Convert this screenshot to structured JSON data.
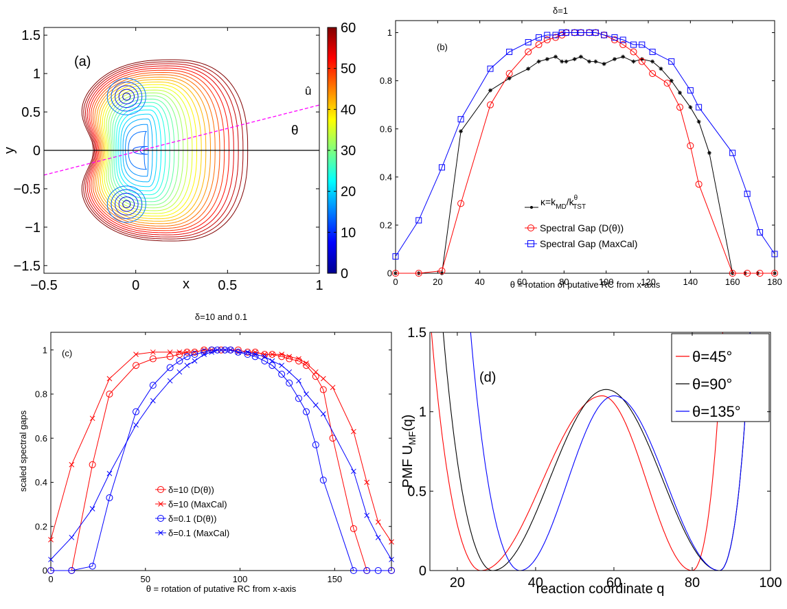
{
  "chart_data": [
    {
      "id": "a",
      "type": "contour",
      "panel_label": "(a)",
      "xlabel": "x",
      "ylabel": "y",
      "xlim": [
        -0.5,
        1
      ],
      "ylim": [
        -1.6,
        1.6
      ],
      "xticks": [
        "−0.5",
        "0",
        "0.5",
        "1"
      ],
      "yticks": [
        "−1.5",
        "−1",
        "−0.5",
        "0",
        "0.5",
        "1",
        "1.5"
      ],
      "colorbar": {
        "range": [
          0,
          60
        ],
        "ticks": [
          "0",
          "10",
          "20",
          "30",
          "40",
          "50",
          "60"
        ]
      },
      "annotations": {
        "u_hat": "û",
        "theta": "θ"
      },
      "wells": [
        {
          "x": -0.05,
          "y": 0.7
        },
        {
          "x": -0.05,
          "y": -0.7
        }
      ],
      "levels": 25
    },
    {
      "id": "b",
      "type": "line",
      "title": "δ=1",
      "panel_label": "(b)",
      "xlabel": "θ = rotation of putative RC from x-axis",
      "xlim": [
        0,
        180
      ],
      "ylim": [
        0,
        1.05
      ],
      "xticks": [
        "0",
        "20",
        "40",
        "60",
        "80",
        "100",
        "120",
        "140",
        "160",
        "180"
      ],
      "yticks": [
        "0",
        "0.2",
        "0.4",
        "0.6",
        "0.8",
        "1"
      ],
      "series": [
        {
          "name": "κ=kMD/kθTST",
          "color": "#000000",
          "marker": "dot",
          "x": [
            0,
            11,
            22,
            31,
            45,
            54,
            63,
            68,
            72,
            76,
            79,
            81,
            85,
            88,
            92,
            95,
            99,
            104,
            108,
            113,
            117,
            122,
            126,
            131,
            135,
            140,
            144,
            149,
            160,
            166,
            172,
            180
          ],
          "y": [
            0,
            0,
            0,
            0.59,
            0.76,
            0.81,
            0.85,
            0.88,
            0.89,
            0.9,
            0.88,
            0.88,
            0.89,
            0.9,
            0.88,
            0.88,
            0.87,
            0.89,
            0.9,
            0.88,
            0.89,
            0.88,
            0.85,
            0.8,
            0.75,
            0.69,
            0.63,
            0.5,
            0,
            0,
            0,
            0
          ]
        },
        {
          "name": "Spectral Gap (D(θ))",
          "color": "#ff0000",
          "marker": "circle",
          "x": [
            0,
            11,
            22,
            31,
            45,
            54,
            63,
            68,
            72,
            76,
            79,
            81,
            85,
            88,
            92,
            95,
            99,
            104,
            108,
            113,
            117,
            122,
            129,
            135,
            140,
            144,
            160,
            167,
            173,
            180
          ],
          "y": [
            0,
            0,
            0.01,
            0.29,
            0.7,
            0.83,
            0.92,
            0.95,
            0.97,
            0.98,
            0.99,
            1.0,
            1.0,
            1.0,
            1.0,
            1.0,
            0.99,
            0.97,
            0.95,
            0.92,
            0.88,
            0.83,
            0.79,
            0.69,
            0.53,
            0.37,
            0,
            0,
            0,
            0
          ]
        },
        {
          "name": "Spectral Gap (MaxCal)",
          "color": "#0000ff",
          "marker": "square",
          "x": [
            0,
            11,
            22,
            31,
            45,
            54,
            63,
            68,
            72,
            76,
            79,
            81,
            85,
            88,
            92,
            95,
            99,
            104,
            108,
            113,
            117,
            122,
            131,
            140,
            144,
            160,
            167,
            173,
            180
          ],
          "y": [
            0.07,
            0.22,
            0.44,
            0.64,
            0.85,
            0.92,
            0.96,
            0.98,
            0.99,
            0.99,
            1.0,
            1.0,
            1.0,
            1.0,
            1.0,
            1.0,
            0.99,
            0.98,
            0.97,
            0.95,
            0.95,
            0.92,
            0.88,
            0.76,
            0.69,
            0.5,
            0.33,
            0.17,
            0.08
          ]
        }
      ],
      "legend_position": "lower-center"
    },
    {
      "id": "c",
      "type": "line",
      "title": "δ=10 and 0.1",
      "panel_label": "(c)",
      "xlabel": "θ = rotation of putative RC from x-axis",
      "ylabel": "scaled spectral gaps",
      "xlim": [
        0,
        180
      ],
      "ylim": [
        0,
        1.08
      ],
      "xticks": [
        "0",
        "50",
        "100",
        "150"
      ],
      "yticks": [
        "0",
        "0.2",
        "0.4",
        "0.6",
        "0.8",
        "1"
      ],
      "series": [
        {
          "name": "δ=10 (D(θ))",
          "color": "#ff0000",
          "marker": "circle",
          "x": [
            0,
            11,
            22,
            31,
            45,
            54,
            63,
            68,
            72,
            76,
            81,
            85,
            90,
            95,
            99,
            104,
            108,
            113,
            117,
            122,
            126,
            131,
            135,
            140,
            144,
            149,
            160,
            167,
            180
          ],
          "y": [
            0,
            0,
            0.48,
            0.8,
            0.93,
            0.96,
            0.97,
            0.98,
            0.99,
            0.99,
            1.0,
            1.0,
            1.0,
            1.0,
            1.0,
            0.99,
            0.99,
            0.98,
            0.98,
            0.97,
            0.96,
            0.95,
            0.93,
            0.88,
            0.82,
            0.6,
            0.19,
            0,
            0
          ]
        },
        {
          "name": "δ=10 (MaxCal)",
          "color": "#ff0000",
          "marker": "x",
          "x": [
            0,
            11,
            22,
            31,
            45,
            54,
            63,
            68,
            72,
            76,
            81,
            85,
            90,
            95,
            99,
            104,
            108,
            113,
            117,
            122,
            126,
            131,
            135,
            140,
            144,
            149,
            160,
            167,
            173,
            180
          ],
          "y": [
            0.14,
            0.48,
            0.69,
            0.87,
            0.98,
            0.99,
            0.99,
            0.99,
            0.99,
            0.99,
            1.0,
            1.0,
            1.0,
            1.0,
            0.99,
            0.99,
            0.99,
            0.98,
            0.98,
            0.98,
            0.97,
            0.96,
            0.94,
            0.9,
            0.87,
            0.83,
            0.63,
            0.4,
            0.22,
            0.13
          ]
        },
        {
          "name": "δ=0.1 (D(θ))",
          "color": "#0000ff",
          "marker": "circle",
          "x": [
            0,
            11,
            22,
            31,
            45,
            54,
            63,
            68,
            72,
            76,
            81,
            85,
            88,
            92,
            95,
            99,
            104,
            108,
            113,
            117,
            122,
            126,
            131,
            135,
            140,
            144,
            160,
            167,
            173,
            180
          ],
          "y": [
            0,
            0,
            0.02,
            0.33,
            0.72,
            0.84,
            0.92,
            0.95,
            0.97,
            0.98,
            0.99,
            1.0,
            1.0,
            1.0,
            1.0,
            0.99,
            0.98,
            0.97,
            0.95,
            0.93,
            0.89,
            0.85,
            0.78,
            0.72,
            0.57,
            0.41,
            0,
            0,
            0,
            0
          ]
        },
        {
          "name": "δ=0.1 (MaxCal)",
          "color": "#0000ff",
          "marker": "x",
          "x": [
            0,
            11,
            22,
            31,
            45,
            54,
            63,
            68,
            72,
            76,
            81,
            85,
            88,
            92,
            95,
            99,
            104,
            108,
            113,
            117,
            122,
            126,
            131,
            135,
            140,
            144,
            160,
            167,
            173,
            180
          ],
          "y": [
            0.05,
            0.15,
            0.28,
            0.44,
            0.66,
            0.77,
            0.86,
            0.9,
            0.93,
            0.95,
            0.98,
            0.99,
            1.0,
            1.0,
            1.0,
            0.99,
            0.99,
            0.98,
            0.97,
            0.95,
            0.93,
            0.9,
            0.86,
            0.8,
            0.75,
            0.71,
            0.45,
            0.25,
            0.15,
            0.05
          ]
        }
      ],
      "legend_position": "lower-center"
    },
    {
      "id": "d",
      "type": "line",
      "panel_label": "(d)",
      "xlabel": "reaction coordinate q",
      "ylabel": "PMF U_MF(q)",
      "xlim": [
        13,
        100
      ],
      "ylim": [
        0,
        1.5
      ],
      "xticks": [
        "20",
        "40",
        "60",
        "80",
        "100"
      ],
      "yticks": [
        "0",
        "0.5",
        "1",
        "1.5"
      ],
      "series": [
        {
          "name": "θ=45°",
          "color": "#ff0000",
          "minima": [
            26,
            80
          ],
          "barrier_q": 57,
          "barrier": 1.1
        },
        {
          "name": "θ=90°",
          "color": "#000000",
          "minima": [
            29,
            87
          ],
          "barrier_q": 58,
          "barrier": 1.14
        },
        {
          "name": "θ=135°",
          "color": "#0000ff",
          "minima": [
            36,
            87
          ],
          "barrier_q": 60,
          "barrier": 1.1
        }
      ],
      "legend_position": "top-right"
    }
  ]
}
